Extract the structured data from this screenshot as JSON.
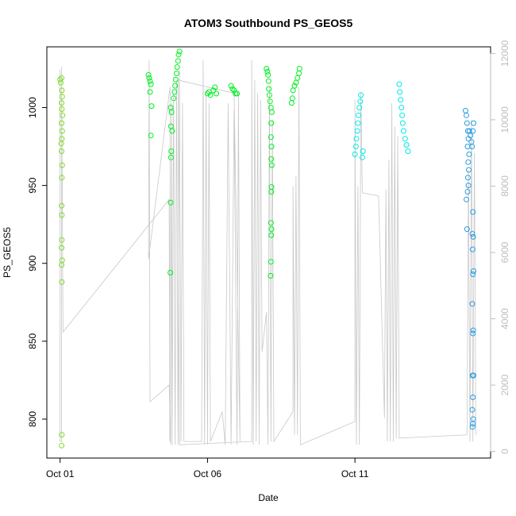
{
  "chart_data": {
    "type": "scatter",
    "title": "ATOM3 Southbound PS_GEOS5",
    "xlabel": "Date",
    "ylabel": "PS_GEOS5",
    "x_unit": "days",
    "x_ticks": [
      {
        "label": "Oct 01",
        "value": 0
      },
      {
        "label": "Oct 06",
        "value": 5
      },
      {
        "label": "Oct 11",
        "value": 10
      }
    ],
    "xlim": [
      -0.45,
      14.6
    ],
    "ylim": [
      775,
      1039
    ],
    "y_ticks": [
      800,
      850,
      900,
      950,
      1000
    ],
    "y2lim": [
      -200,
      12200
    ],
    "y2_ticks": [
      0,
      2000,
      4000,
      6000,
      8000,
      10000,
      12000
    ],
    "grid": false,
    "colors": {
      "points_low_lat": "#7fdc28",
      "points_mid_lat": "#00ee22",
      "points_high_lat": "#00e8e8",
      "points_polar": "#2a9be0",
      "altitude_line": "#c8c8c8"
    },
    "series": [
      {
        "values": [
          {
            "x": 0.0,
            "y": 1018
          },
          {
            "x": 0.02,
            "y": 1016
          },
          {
            "x": 0.05,
            "y": 1019
          },
          {
            "x": 0.06,
            "y": 1011
          },
          {
            "x": 0.07,
            "y": 1007
          },
          {
            "x": 0.05,
            "y": 1003
          },
          {
            "x": 0.06,
            "y": 999
          },
          {
            "x": 0.08,
            "y": 995
          },
          {
            "x": 0.05,
            "y": 990
          },
          {
            "x": 0.07,
            "y": 985
          },
          {
            "x": 0.06,
            "y": 980
          },
          {
            "x": 0.04,
            "y": 977
          },
          {
            "x": 0.05,
            "y": 972
          },
          {
            "x": 0.07,
            "y": 963
          },
          {
            "x": 0.06,
            "y": 955
          },
          {
            "x": 0.05,
            "y": 937
          },
          {
            "x": 0.06,
            "y": 931
          },
          {
            "x": 0.06,
            "y": 915
          },
          {
            "x": 0.05,
            "y": 910
          },
          {
            "x": 0.07,
            "y": 902
          },
          {
            "x": 0.05,
            "y": 899
          },
          {
            "x": 0.06,
            "y": 888
          },
          {
            "x": 0.06,
            "y": 790
          },
          {
            "x": 0.05,
            "y": 783
          }
        ]
      },
      {
        "values": [
          {
            "x": 3.0,
            "y": 1021
          },
          {
            "x": 3.02,
            "y": 1019
          },
          {
            "x": 3.05,
            "y": 1017
          },
          {
            "x": 3.08,
            "y": 1015
          },
          {
            "x": 3.05,
            "y": 1010
          },
          {
            "x": 3.1,
            "y": 1001
          },
          {
            "x": 3.08,
            "y": 982
          },
          {
            "x": 3.75,
            "y": 1000
          },
          {
            "x": 3.78,
            "y": 997
          },
          {
            "x": 3.76,
            "y": 988
          },
          {
            "x": 3.8,
            "y": 985
          },
          {
            "x": 3.77,
            "y": 972
          },
          {
            "x": 3.76,
            "y": 968
          },
          {
            "x": 3.75,
            "y": 939
          },
          {
            "x": 3.74,
            "y": 894
          },
          {
            "x": 3.85,
            "y": 1006
          },
          {
            "x": 3.88,
            "y": 1010
          },
          {
            "x": 3.9,
            "y": 1014
          },
          {
            "x": 3.92,
            "y": 1018
          },
          {
            "x": 3.95,
            "y": 1022
          },
          {
            "x": 3.97,
            "y": 1026
          },
          {
            "x": 4.0,
            "y": 1030
          },
          {
            "x": 4.02,
            "y": 1034
          },
          {
            "x": 4.05,
            "y": 1036
          },
          {
            "x": 5.0,
            "y": 1009
          },
          {
            "x": 5.05,
            "y": 1010
          },
          {
            "x": 5.1,
            "y": 1008
          },
          {
            "x": 5.2,
            "y": 1011
          },
          {
            "x": 5.25,
            "y": 1013
          },
          {
            "x": 5.3,
            "y": 1009
          },
          {
            "x": 5.8,
            "y": 1014
          },
          {
            "x": 5.85,
            "y": 1012
          },
          {
            "x": 5.9,
            "y": 1011
          },
          {
            "x": 5.95,
            "y": 1009
          },
          {
            "x": 6.0,
            "y": 1009
          },
          {
            "x": 7.0,
            "y": 1025
          },
          {
            "x": 7.03,
            "y": 1023
          },
          {
            "x": 7.05,
            "y": 1021
          },
          {
            "x": 7.07,
            "y": 1017
          },
          {
            "x": 7.08,
            "y": 1012
          },
          {
            "x": 7.1,
            "y": 1008
          },
          {
            "x": 7.12,
            "y": 1004
          },
          {
            "x": 7.15,
            "y": 1000
          },
          {
            "x": 7.18,
            "y": 997
          },
          {
            "x": 7.16,
            "y": 990
          },
          {
            "x": 7.15,
            "y": 981
          },
          {
            "x": 7.17,
            "y": 975
          },
          {
            "x": 7.16,
            "y": 967
          },
          {
            "x": 7.18,
            "y": 963
          },
          {
            "x": 7.17,
            "y": 949
          },
          {
            "x": 7.16,
            "y": 946
          },
          {
            "x": 7.15,
            "y": 926
          },
          {
            "x": 7.17,
            "y": 922
          },
          {
            "x": 7.16,
            "y": 918
          },
          {
            "x": 7.15,
            "y": 901
          },
          {
            "x": 7.14,
            "y": 892
          },
          {
            "x": 7.85,
            "y": 1003
          },
          {
            "x": 7.88,
            "y": 1006
          },
          {
            "x": 7.9,
            "y": 1011
          },
          {
            "x": 7.95,
            "y": 1014
          },
          {
            "x": 8.0,
            "y": 1016
          },
          {
            "x": 8.05,
            "y": 1019
          },
          {
            "x": 8.1,
            "y": 1022
          },
          {
            "x": 8.12,
            "y": 1025
          }
        ]
      },
      {
        "values": [
          {
            "x": 10.0,
            "y": 970
          },
          {
            "x": 10.03,
            "y": 975
          },
          {
            "x": 10.05,
            "y": 980
          },
          {
            "x": 10.08,
            "y": 985
          },
          {
            "x": 10.1,
            "y": 990
          },
          {
            "x": 10.12,
            "y": 995
          },
          {
            "x": 10.15,
            "y": 1000
          },
          {
            "x": 10.18,
            "y": 1004
          },
          {
            "x": 10.2,
            "y": 1008
          },
          {
            "x": 10.25,
            "y": 968
          },
          {
            "x": 10.27,
            "y": 972
          },
          {
            "x": 11.5,
            "y": 1015
          },
          {
            "x": 11.52,
            "y": 1010
          },
          {
            "x": 11.55,
            "y": 1005
          },
          {
            "x": 11.58,
            "y": 1000
          },
          {
            "x": 11.6,
            "y": 995
          },
          {
            "x": 11.62,
            "y": 990
          },
          {
            "x": 11.65,
            "y": 985
          },
          {
            "x": 11.7,
            "y": 980
          },
          {
            "x": 11.75,
            "y": 976
          },
          {
            "x": 11.8,
            "y": 972
          }
        ]
      },
      {
        "values": [
          {
            "x": 13.75,
            "y": 998
          },
          {
            "x": 13.78,
            "y": 995
          },
          {
            "x": 13.8,
            "y": 990
          },
          {
            "x": 13.83,
            "y": 985
          },
          {
            "x": 13.85,
            "y": 980
          },
          {
            "x": 13.82,
            "y": 975
          },
          {
            "x": 13.87,
            "y": 970
          },
          {
            "x": 13.84,
            "y": 965
          },
          {
            "x": 13.86,
            "y": 960
          },
          {
            "x": 13.83,
            "y": 955
          },
          {
            "x": 13.85,
            "y": 950
          },
          {
            "x": 13.82,
            "y": 946
          },
          {
            "x": 13.78,
            "y": 941
          },
          {
            "x": 13.8,
            "y": 922
          },
          {
            "x": 13.88,
            "y": 985
          },
          {
            "x": 13.92,
            "y": 982
          },
          {
            "x": 13.95,
            "y": 978
          },
          {
            "x": 13.97,
            "y": 975
          },
          {
            "x": 14.0,
            "y": 985
          },
          {
            "x": 14.02,
            "y": 990
          },
          {
            "x": 14.0,
            "y": 933
          },
          {
            "x": 13.98,
            "y": 919
          },
          {
            "x": 14.01,
            "y": 917
          },
          {
            "x": 13.99,
            "y": 909
          },
          {
            "x": 14.02,
            "y": 895
          },
          {
            "x": 14.0,
            "y": 893
          },
          {
            "x": 13.98,
            "y": 874
          },
          {
            "x": 14.01,
            "y": 857
          },
          {
            "x": 14.0,
            "y": 855
          },
          {
            "x": 13.99,
            "y": 828
          },
          {
            "x": 14.02,
            "y": 828
          },
          {
            "x": 14.0,
            "y": 814
          },
          {
            "x": 13.98,
            "y": 806
          },
          {
            "x": 14.01,
            "y": 800
          },
          {
            "x": 14.0,
            "y": 797
          },
          {
            "x": 13.99,
            "y": 795
          }
        ]
      }
    ],
    "altitude_line": {
      "axis": "right",
      "path": [
        {
          "x": 0.0,
          "y": 11500
        },
        {
          "x": 0.0,
          "y": 300
        },
        {
          "x": 0.05,
          "y": 300
        },
        {
          "x": 0.05,
          "y": 11600
        },
        {
          "x": 0.1,
          "y": 3600
        },
        {
          "x": 3.7,
          "y": 7600
        },
        {
          "x": 3.72,
          "y": 300
        },
        {
          "x": 3.73,
          "y": 11000
        },
        {
          "x": 3.0,
          "y": 5800
        },
        {
          "x": 3.02,
          "y": 11800
        },
        {
          "x": 3.05,
          "y": 1500
        },
        {
          "x": 3.7,
          "y": 2000
        },
        {
          "x": 3.75,
          "y": 200
        },
        {
          "x": 3.78,
          "y": 10500
        },
        {
          "x": 3.8,
          "y": 200
        },
        {
          "x": 3.85,
          "y": 10800
        },
        {
          "x": 3.9,
          "y": 200
        },
        {
          "x": 3.95,
          "y": 11200
        },
        {
          "x": 4.0,
          "y": 200
        },
        {
          "x": 4.05,
          "y": 11500
        },
        {
          "x": 4.1,
          "y": 300
        },
        {
          "x": 4.15,
          "y": 10500
        },
        {
          "x": 4.2,
          "y": 300
        },
        {
          "x": 4.8,
          "y": 300
        },
        {
          "x": 4.85,
          "y": 11800
        },
        {
          "x": 4.9,
          "y": 200
        },
        {
          "x": 4.95,
          "y": 10800
        },
        {
          "x": 5.0,
          "y": 200
        },
        {
          "x": 5.05,
          "y": 10500
        },
        {
          "x": 5.1,
          "y": 300
        },
        {
          "x": 5.5,
          "y": 1200
        },
        {
          "x": 5.6,
          "y": 200
        },
        {
          "x": 5.7,
          "y": 10500
        },
        {
          "x": 5.8,
          "y": 200
        },
        {
          "x": 5.9,
          "y": 10300
        },
        {
          "x": 6.0,
          "y": 200
        },
        {
          "x": 6.05,
          "y": 10800
        },
        {
          "x": 6.1,
          "y": 300
        },
        {
          "x": 5.9,
          "y": 10800
        },
        {
          "x": 4.0,
          "y": 11200
        },
        {
          "x": 4.05,
          "y": 200
        },
        {
          "x": 6.5,
          "y": 300
        },
        {
          "x": 6.5,
          "y": 11800
        },
        {
          "x": 6.55,
          "y": 200
        },
        {
          "x": 6.6,
          "y": 11200
        },
        {
          "x": 6.65,
          "y": 300
        },
        {
          "x": 6.7,
          "y": 10800
        },
        {
          "x": 6.75,
          "y": 200
        },
        {
          "x": 6.8,
          "y": 10600
        },
        {
          "x": 6.85,
          "y": 3000
        },
        {
          "x": 7.0,
          "y": 4200
        },
        {
          "x": 7.05,
          "y": 200
        },
        {
          "x": 7.1,
          "y": 11000
        },
        {
          "x": 7.15,
          "y": 300
        },
        {
          "x": 7.2,
          "y": 10000
        },
        {
          "x": 7.25,
          "y": 300
        },
        {
          "x": 7.9,
          "y": 1200
        },
        {
          "x": 7.9,
          "y": 8000
        },
        {
          "x": 7.95,
          "y": 500
        },
        {
          "x": 8.0,
          "y": 8300
        },
        {
          "x": 8.05,
          "y": 500
        },
        {
          "x": 8.1,
          "y": 11000
        },
        {
          "x": 8.15,
          "y": 200
        },
        {
          "x": 10.0,
          "y": 900
        },
        {
          "x": 10.0,
          "y": 10600
        },
        {
          "x": 10.05,
          "y": 200
        },
        {
          "x": 10.1,
          "y": 8000
        },
        {
          "x": 10.15,
          "y": 200
        },
        {
          "x": 10.2,
          "y": 10800
        },
        {
          "x": 10.25,
          "y": 7800
        },
        {
          "x": 10.8,
          "y": 7700
        },
        {
          "x": 11.0,
          "y": 1000
        },
        {
          "x": 11.05,
          "y": 7900
        },
        {
          "x": 11.1,
          "y": 300
        },
        {
          "x": 11.15,
          "y": 8800
        },
        {
          "x": 11.2,
          "y": 300
        },
        {
          "x": 11.25,
          "y": 10500
        },
        {
          "x": 11.3,
          "y": 300
        },
        {
          "x": 11.35,
          "y": 9800
        },
        {
          "x": 11.4,
          "y": 400
        },
        {
          "x": 11.45,
          "y": 9500
        },
        {
          "x": 11.5,
          "y": 400
        },
        {
          "x": 13.8,
          "y": 500
        },
        {
          "x": 13.85,
          "y": 8500
        },
        {
          "x": 13.9,
          "y": 300
        },
        {
          "x": 13.95,
          "y": 10000
        },
        {
          "x": 14.0,
          "y": 300
        },
        {
          "x": 14.05,
          "y": 9000
        },
        {
          "x": 14.1,
          "y": 500
        }
      ]
    }
  }
}
